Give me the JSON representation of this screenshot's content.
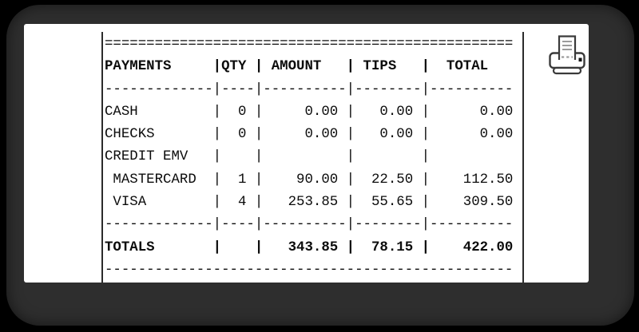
{
  "window": {
    "canvas_color": "#000000",
    "frame_color": "#2e2e2e",
    "sheet_color": "#ffffff"
  },
  "toolbar": {
    "print_button": {
      "icon": "printer-icon"
    }
  },
  "receipt": {
    "lines": [
      {
        "text": "=================================================",
        "bold": false
      },
      {
        "text": "PAYMENTS     |QTY | AMOUNT   | TIPS   |  TOTAL",
        "bold": true
      },
      {
        "text": "-------------|----|----------|--------|----------",
        "bold": false
      },
      {
        "text": "CASH         |  0 |     0.00 |   0.00 |      0.00",
        "bold": false
      },
      {
        "text": "CHECKS       |  0 |     0.00 |   0.00 |      0.00",
        "bold": false
      },
      {
        "text": "CREDIT EMV   |    |          |        |",
        "bold": false
      },
      {
        "text": " MASTERCARD  |  1 |    90.00 |  22.50 |    112.50",
        "bold": false
      },
      {
        "text": " VISA        |  4 |   253.85 |  55.65 |    309.50",
        "bold": false
      },
      {
        "text": "-------------|----|----------|--------|----------",
        "bold": false
      },
      {
        "text": "TOTALS       |    |   343.85 |  78.15 |    422.00",
        "bold": true
      },
      {
        "text": "-------------------------------------------------",
        "bold": false
      }
    ],
    "table": {
      "columns": [
        "PAYMENTS",
        "QTY",
        "AMOUNT",
        "TIPS",
        "TOTAL"
      ],
      "rows": [
        {
          "payments": "CASH",
          "qty": "0",
          "amount": "0.00",
          "tips": "0.00",
          "total": "0.00"
        },
        {
          "payments": "CHECKS",
          "qty": "0",
          "amount": "0.00",
          "tips": "0.00",
          "total": "0.00"
        },
        {
          "payments": "CREDIT EMV",
          "qty": "",
          "amount": "",
          "tips": "",
          "total": ""
        },
        {
          "payments": "MASTERCARD",
          "qty": "1",
          "amount": "90.00",
          "tips": "22.50",
          "total": "112.50"
        },
        {
          "payments": "VISA",
          "qty": "4",
          "amount": "253.85",
          "tips": "55.65",
          "total": "309.50"
        }
      ],
      "totals_row": {
        "payments": "TOTALS",
        "qty": "",
        "amount": "343.85",
        "tips": "78.15",
        "total": "422.00"
      }
    }
  }
}
